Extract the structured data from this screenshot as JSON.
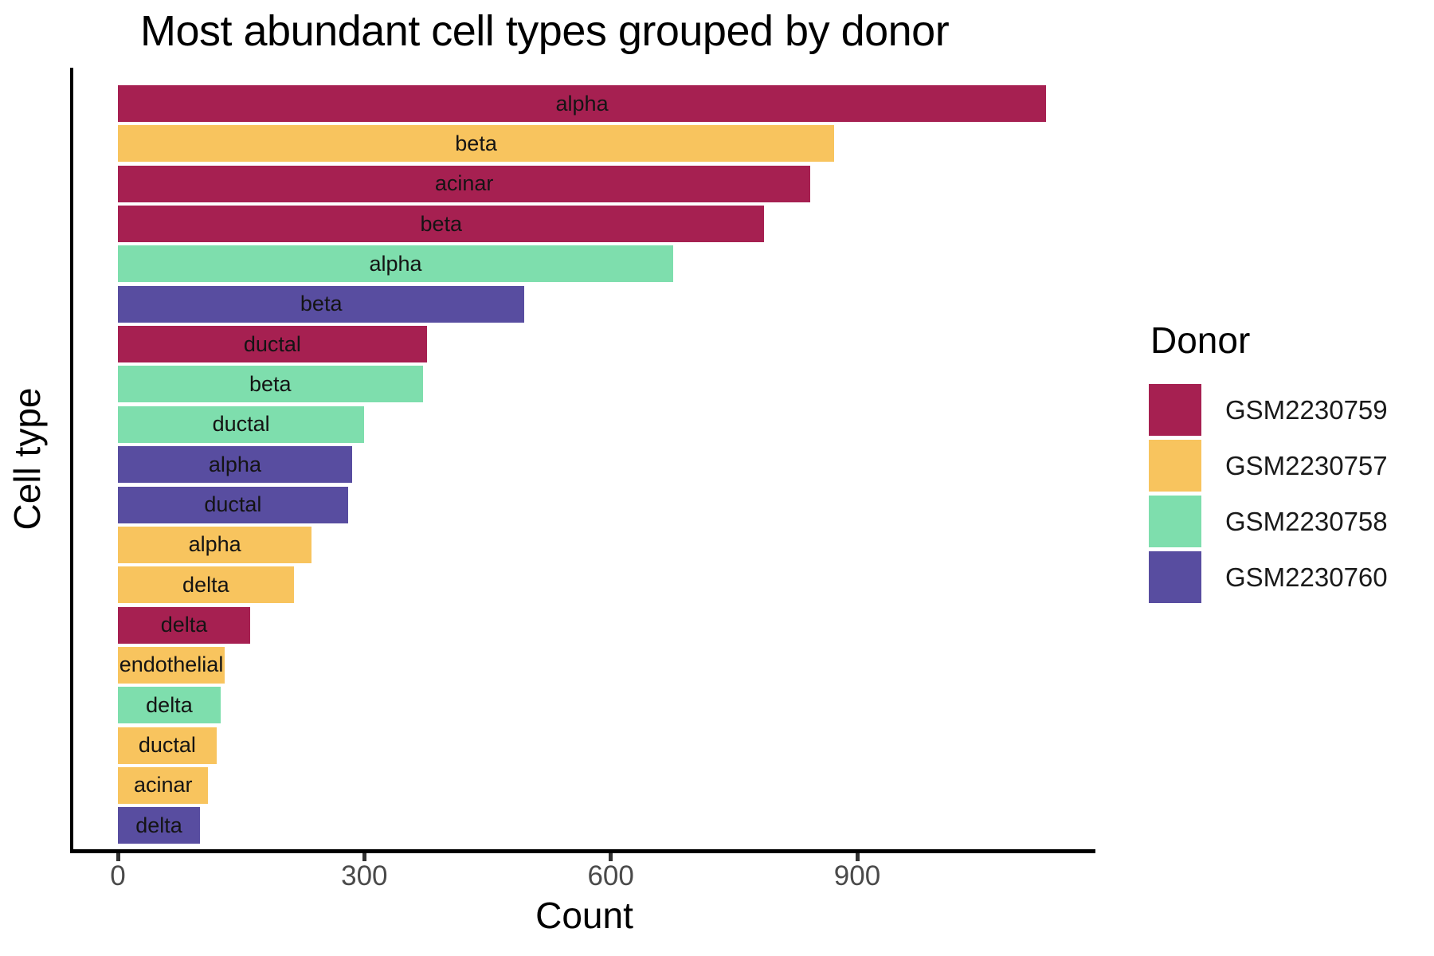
{
  "chart_data": {
    "type": "bar",
    "orientation": "horizontal",
    "title": "Most abundant cell types grouped by donor",
    "xlabel": "Count",
    "ylabel": "Cell type",
    "xlim": [
      0,
      1190
    ],
    "x_ticks": [
      0,
      300,
      600,
      900
    ],
    "grid": false,
    "legend": {
      "title": "Donor",
      "position": "right",
      "entries": [
        "GSM2230759",
        "GSM2230757",
        "GSM2230758",
        "GSM2230760"
      ]
    },
    "donor_colors": {
      "GSM2230759": "#A62051",
      "GSM2230757": "#F8C45E",
      "GSM2230758": "#7EDEAD",
      "GSM2230760": "#584DA0"
    },
    "bars": [
      {
        "cell_type": "alpha",
        "donor": "GSM2230759",
        "count": 1130
      },
      {
        "cell_type": "beta",
        "donor": "GSM2230757",
        "count": 872
      },
      {
        "cell_type": "acinar",
        "donor": "GSM2230759",
        "count": 843
      },
      {
        "cell_type": "beta",
        "donor": "GSM2230759",
        "count": 787
      },
      {
        "cell_type": "alpha",
        "donor": "GSM2230758",
        "count": 676
      },
      {
        "cell_type": "beta",
        "donor": "GSM2230760",
        "count": 495
      },
      {
        "cell_type": "ductal",
        "donor": "GSM2230759",
        "count": 376
      },
      {
        "cell_type": "beta",
        "donor": "GSM2230758",
        "count": 371
      },
      {
        "cell_type": "ductal",
        "donor": "GSM2230758",
        "count": 300
      },
      {
        "cell_type": "alpha",
        "donor": "GSM2230760",
        "count": 285
      },
      {
        "cell_type": "ductal",
        "donor": "GSM2230760",
        "count": 280
      },
      {
        "cell_type": "alpha",
        "donor": "GSM2230757",
        "count": 236
      },
      {
        "cell_type": "delta",
        "donor": "GSM2230757",
        "count": 214
      },
      {
        "cell_type": "delta",
        "donor": "GSM2230759",
        "count": 161
      },
      {
        "cell_type": "endothelial",
        "donor": "GSM2230757",
        "count": 130
      },
      {
        "cell_type": "delta",
        "donor": "GSM2230758",
        "count": 125
      },
      {
        "cell_type": "ductal",
        "donor": "GSM2230757",
        "count": 120
      },
      {
        "cell_type": "acinar",
        "donor": "GSM2230757",
        "count": 110
      },
      {
        "cell_type": "delta",
        "donor": "GSM2230760",
        "count": 100
      }
    ],
    "style": {
      "axis_color": "#000000",
      "tick_color": "#333333",
      "tick_label_color": "#4a4a4a",
      "bar_label_color": "#141414",
      "background": "#ffffff"
    }
  }
}
